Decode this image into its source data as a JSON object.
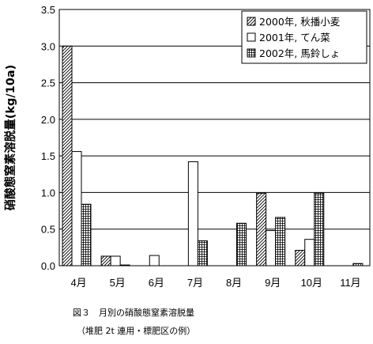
{
  "chart_data": {
    "type": "bar",
    "categories": [
      "4月",
      "5月",
      "6月",
      "7月",
      "8月",
      "9月",
      "10月",
      "11月"
    ],
    "series": [
      {
        "name": "2000年, 秋播小麦",
        "pattern": "diagonal",
        "values": [
          3.0,
          0.13,
          null,
          null,
          null,
          0.99,
          0.21,
          null
        ]
      },
      {
        "name": "2001年, てん菜",
        "pattern": "plain",
        "values": [
          1.56,
          0.13,
          0.14,
          1.42,
          null,
          0.48,
          0.36,
          null
        ]
      },
      {
        "name": "2002年, 馬鈴しょ",
        "pattern": "grid",
        "values": [
          0.84,
          0.01,
          null,
          0.34,
          0.58,
          0.66,
          0.99,
          0.03
        ]
      }
    ],
    "ylabel": "硝酸態窒素溶脱量(kg/10a)",
    "xlabel": "",
    "ylim": [
      0,
      3.5
    ],
    "yticks": [
      "0.0",
      "0.5",
      "1.0",
      "1.5",
      "2.0",
      "2.5",
      "3.0",
      "3.5"
    ],
    "grid": true,
    "legend_position": "top-right"
  },
  "caption": {
    "line1": "図３　月別の硝酸態窒素溶脱量",
    "line2": "（堆肥 2t 連用・標肥区の例）"
  },
  "colors": {
    "ink": "#000000",
    "background": "#ffffff"
  }
}
